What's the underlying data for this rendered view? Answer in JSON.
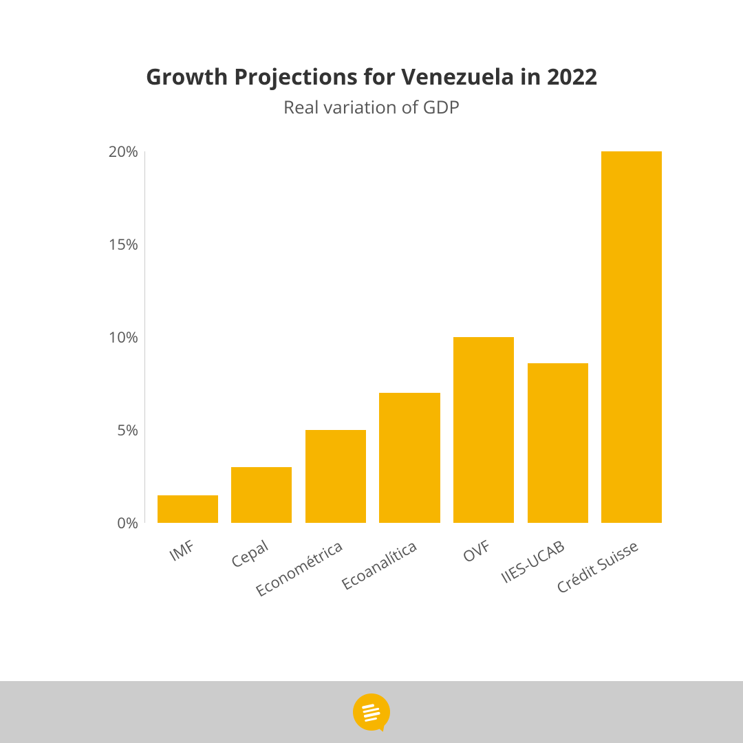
{
  "title": "Growth Projections for Venezuela in 2022",
  "subtitle": "Real variation of GDP",
  "title_fontsize": 32,
  "subtitle_fontsize": 26,
  "title_color": "#333333",
  "subtitle_color": "#555555",
  "chart": {
    "type": "bar",
    "categories": [
      "IMF",
      "Cepal",
      "Econométrica",
      "Ecoanalítica",
      "OVF",
      "IIES-UCAB",
      "Crédit Suisse"
    ],
    "values": [
      1.5,
      3.0,
      5.0,
      7.0,
      10.0,
      8.6,
      20.0
    ],
    "bar_color": "#f7b500",
    "ylim": [
      0,
      20
    ],
    "ytick_step": 5,
    "ytick_suffix": "%",
    "yticks": [
      "0%",
      "5%",
      "10%",
      "15%",
      "20%"
    ],
    "axis_color": "#cccccc",
    "label_color": "#555555",
    "label_fontsize": 22,
    "bar_width": 0.82,
    "xlabel_rotation": -30,
    "background_color": "#ffffff"
  },
  "footer": {
    "background_color": "#cccccc",
    "logo_bg": "#f7b500",
    "logo_fg": "#ffffff"
  }
}
